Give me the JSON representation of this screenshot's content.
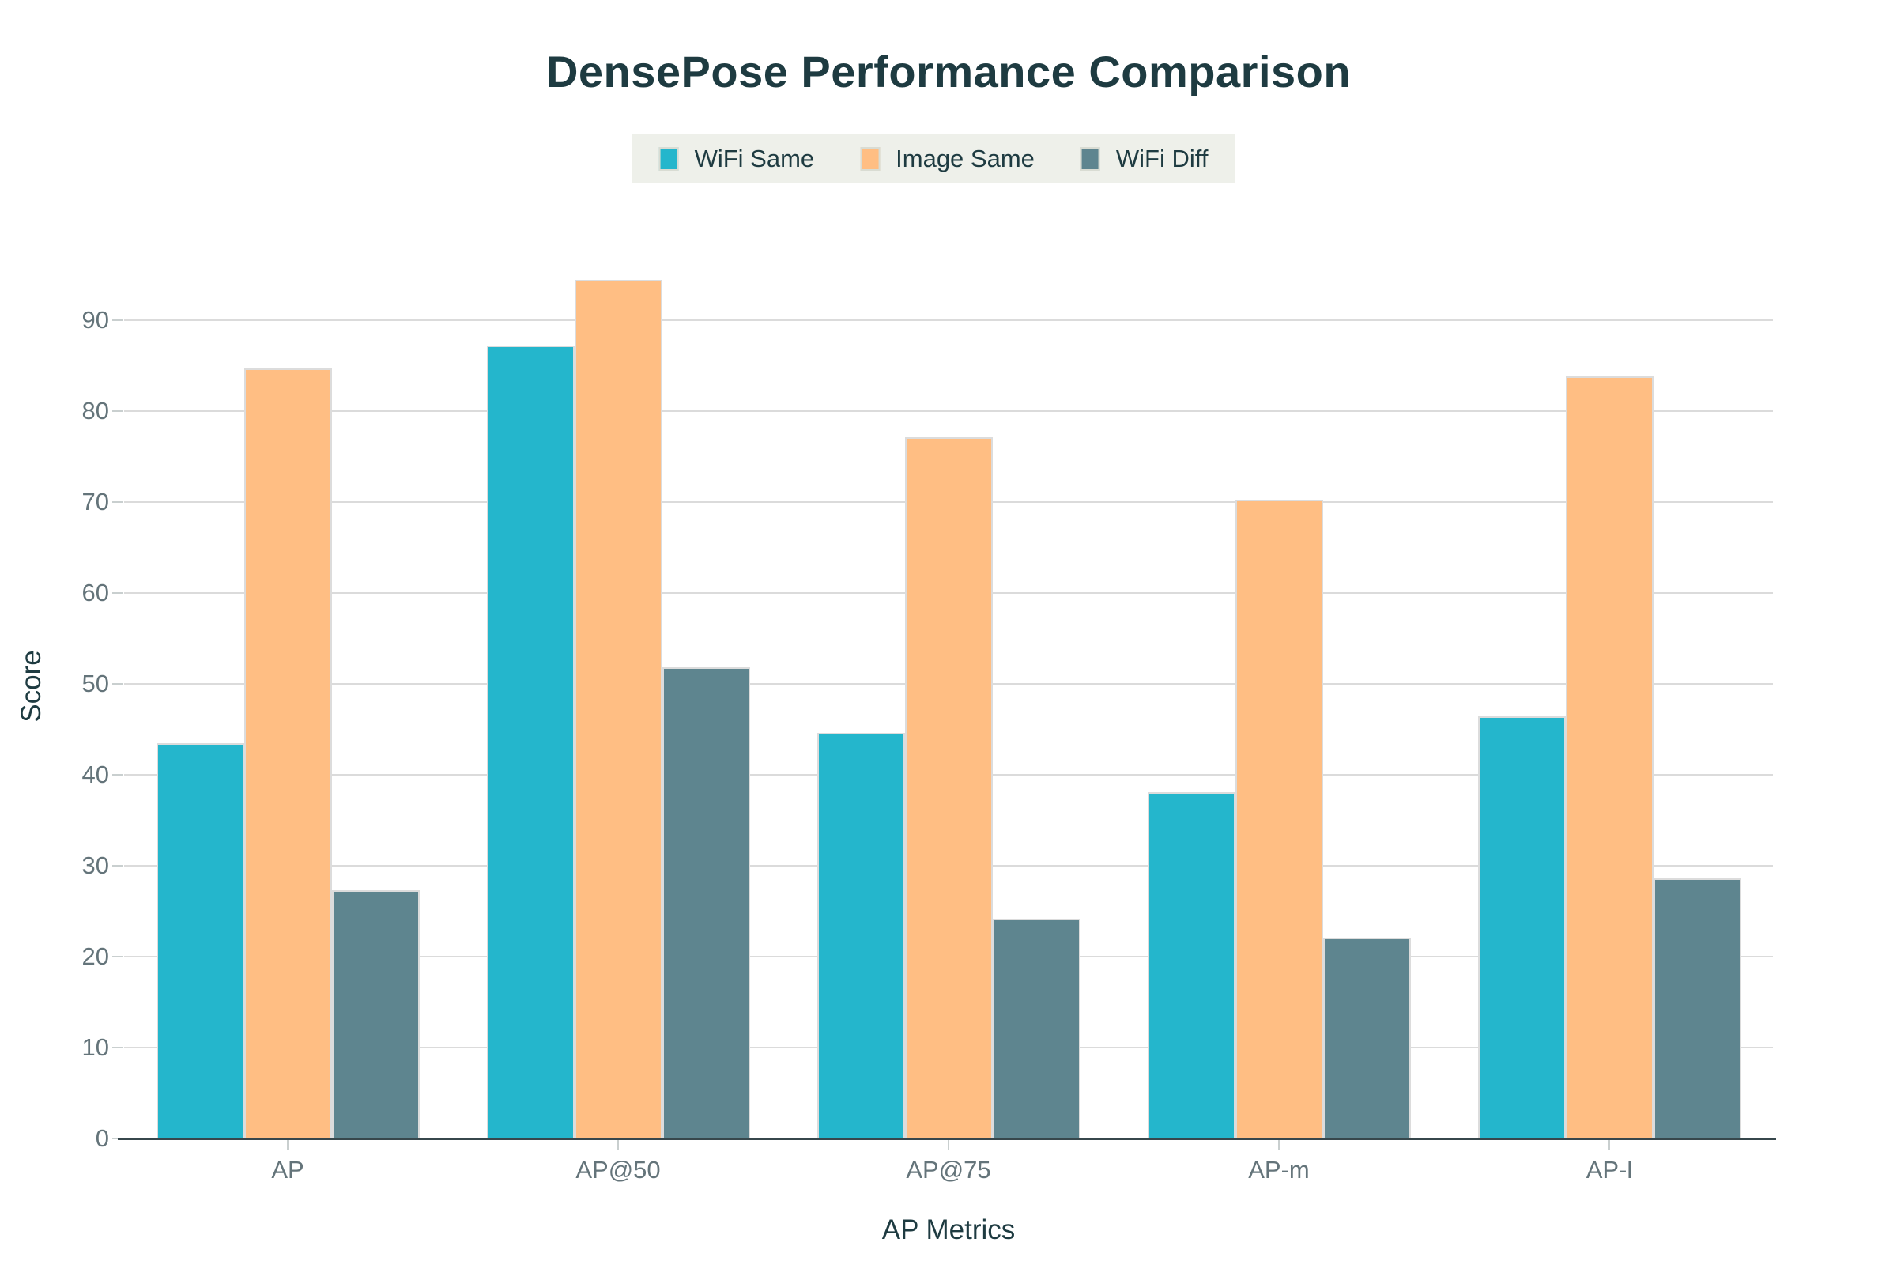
{
  "chart_data": {
    "type": "bar",
    "title": "DensePose Performance Comparison",
    "xlabel": "AP Metrics",
    "ylabel": "Score",
    "categories": [
      "AP",
      "AP@50",
      "AP@75",
      "AP-m",
      "AP-l"
    ],
    "series": [
      {
        "name": "WiFi Same",
        "color": "#24B6CC",
        "values": [
          43.5,
          87.2,
          44.6,
          38.1,
          46.4
        ]
      },
      {
        "name": "Image Same",
        "color": "#FFBE83",
        "values": [
          84.7,
          94.4,
          77.1,
          70.3,
          83.8
        ]
      },
      {
        "name": "WiFi Diff",
        "color": "#5E858F",
        "values": [
          27.3,
          51.8,
          24.2,
          22.1,
          28.6
        ]
      }
    ],
    "yticks": [
      0,
      10,
      20,
      30,
      40,
      50,
      60,
      70,
      80,
      90
    ],
    "ylim": [
      0,
      99
    ],
    "grid": "horizontal",
    "legend_position": "top",
    "colors": {
      "title_text": "#1E3B41",
      "tick_text": "#64747A",
      "gridline": "#DBDBDB",
      "axis_line": "#37474C",
      "legend_background": "#EEF0EA",
      "background": "#FFFFFF"
    }
  }
}
